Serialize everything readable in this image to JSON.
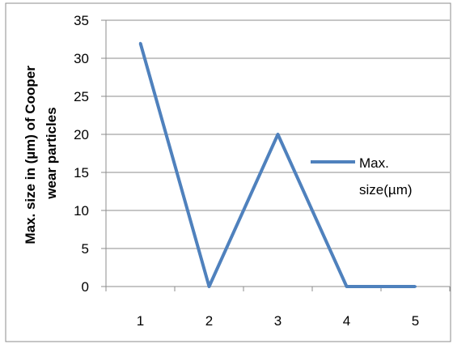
{
  "chart_data": {
    "type": "line",
    "title": "",
    "ylabel_lines": [
      "Max. size in (µm) of Cooper",
      "wear particles"
    ],
    "xlabel": "",
    "categories": [
      "1",
      "2",
      "3",
      "4",
      "5"
    ],
    "series": [
      {
        "name": "Max. size(µm)",
        "values": [
          32,
          0,
          20,
          0,
          0
        ],
        "color": "#4f81bd"
      }
    ],
    "ylim": [
      0,
      35
    ],
    "yticks": [
      0,
      5,
      10,
      15,
      20,
      25,
      30,
      35
    ],
    "grid": "horizontal",
    "legend": {
      "position": "right",
      "lines": [
        "Max.",
        "size(µm)"
      ]
    },
    "colors": {
      "grid": "#8c8c8c",
      "border": "#8c8c8c",
      "axis": "#8c8c8c"
    }
  }
}
